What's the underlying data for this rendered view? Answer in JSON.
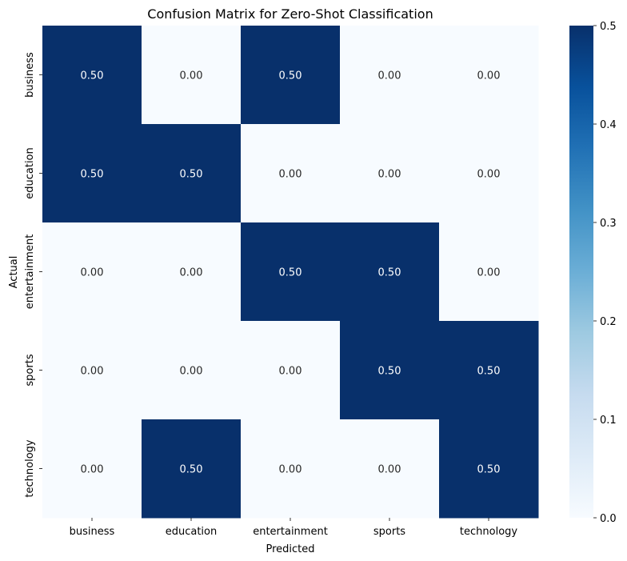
{
  "chart_data": {
    "type": "heatmap",
    "title": "Confusion Matrix for Zero-Shot Classification",
    "xlabel": "Predicted",
    "ylabel": "Actual",
    "x_categories": [
      "business",
      "education",
      "entertainment",
      "sports",
      "technology"
    ],
    "y_categories": [
      "business",
      "education",
      "entertainment",
      "sports",
      "technology"
    ],
    "values": [
      [
        0.5,
        0.0,
        0.5,
        0.0,
        0.0
      ],
      [
        0.5,
        0.5,
        0.0,
        0.0,
        0.0
      ],
      [
        0.0,
        0.0,
        0.5,
        0.5,
        0.0
      ],
      [
        0.0,
        0.0,
        0.0,
        0.5,
        0.5
      ],
      [
        0.0,
        0.5,
        0.0,
        0.0,
        0.5
      ]
    ],
    "value_format": "2 decimals",
    "colormap": "Blues",
    "low_color": "#f7fbff",
    "high_color": "#08306b",
    "colorbar": {
      "range": [
        0,
        0.5
      ],
      "ticks": [
        "0.0",
        "0.1",
        "0.2",
        "0.3",
        "0.4",
        "0.5"
      ]
    }
  }
}
